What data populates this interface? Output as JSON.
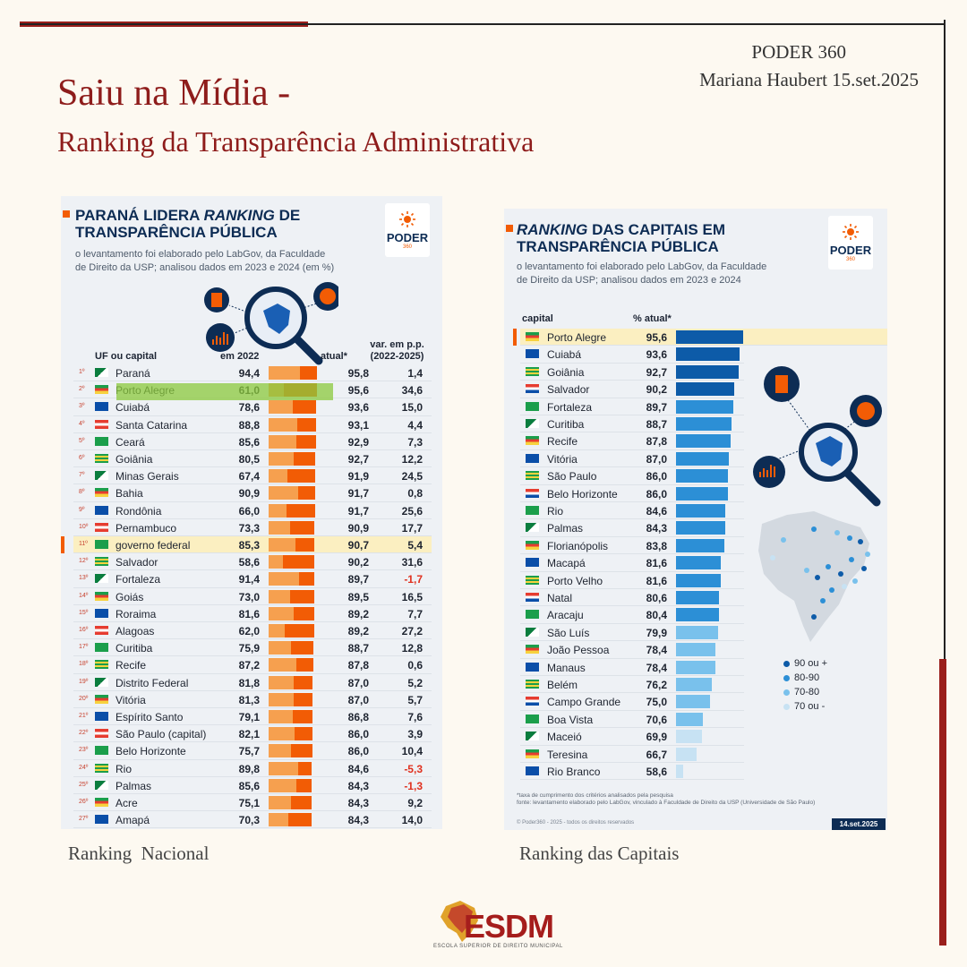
{
  "header": {
    "title": "Saiu na Mídia -",
    "subtitle": "Ranking da Transparência Administrativa",
    "source": "PODER 360",
    "author_date": "Mariana Haubert  15.set.2025"
  },
  "left_panel": {
    "title_line1": "PARANÁ LIDERA ",
    "title_italic": "RANKING",
    "title_line1_end": " DE",
    "title_line2": "TRANSPARÊNCIA PÚBLICA",
    "desc_line1": "o levantamento foi elaborado pelo LabGov, da Faculdade",
    "desc_line2": "de Direito da USP; analisou dados em 2023 e 2024 (em %)",
    "logo_word": "PODER",
    "logo_num": "360",
    "col_name": "UF ou capital",
    "col_2022": "em 2022",
    "col_now": "atual*",
    "col_var1": "var. em p.p.",
    "col_var2": "(2022-2025)",
    "caption": "Ranking  Nacional"
  },
  "right_panel": {
    "title_italic": "RANKING",
    "title_line1_end": " DAS CAPITAIS EM",
    "title_line2": "TRANSPARÊNCIA PÚBLICA",
    "desc_line1": "o levantamento foi elaborado pelo LabGov, da Faculdade",
    "desc_line2": "de Direito da USP; analisou dados em 2023 e 2024",
    "logo_word": "PODER",
    "logo_num": "360",
    "col_name": "capital",
    "col_val": "% atual*",
    "legend": [
      "90 ou +",
      "80-90",
      "70-80",
      "70 ou -"
    ],
    "footnote1": "*taxa de cumprimento dos critérios analisados pela pesquisa",
    "footnote2": "fonte: levantamento elaborado pelo LabGov, vinculado à Faculdade de Direito da USP (Universidade de São Paulo)",
    "copyright": "© Poder360 - 2025 - todos os direitos reservados",
    "date": "14.set.2025",
    "caption": "Ranking das Capitais"
  },
  "brand": {
    "name": "ESDM",
    "full": "ESCOLA SUPERIOR DE DIREITO MUNICIPAL"
  },
  "colors": {
    "accent_red": "#8e1c1b",
    "navy": "#0d2c54",
    "orange": "#f25c05",
    "orange_light": "#f6a04f",
    "tier_90": "#0d5ba8",
    "tier_80": "#2c8fd6",
    "tier_70": "#79c1ec",
    "tier_low": "#c7e2f3"
  },
  "chart_data": [
    {
      "type": "bar",
      "title": "PARANÁ LIDERA RANKING DE TRANSPARÊNCIA PÚBLICA",
      "xlabel": "",
      "ylabel": "",
      "ylim": [
        0,
        100
      ],
      "categories": [
        "Paraná",
        "Porto Alegre",
        "Cuiabá",
        "Santa Catarina",
        "Ceará",
        "Goiânia",
        "Minas Gerais",
        "Bahia",
        "Rondônia",
        "Pernambuco",
        "governo federal",
        "Salvador",
        "Fortaleza",
        "Goiás",
        "Roraima",
        "Alagoas",
        "Curitiba",
        "Recife",
        "Distrito Federal",
        "Vitória",
        "Espírito Santo",
        "São Paulo (capital)",
        "Belo Horizonte",
        "Rio",
        "Palmas",
        "Acre",
        "Amapá"
      ],
      "ranks": [
        "1º",
        "2º",
        "3º",
        "4º",
        "5º",
        "6º",
        "7º",
        "8º",
        "9º",
        "10º",
        "11º",
        "12º",
        "13º",
        "14º",
        "15º",
        "16º",
        "17º",
        "18º",
        "19º",
        "20º",
        "21º",
        "22º",
        "23º",
        "24º",
        "25º",
        "26º",
        "27º"
      ],
      "series": [
        {
          "name": "em 2022",
          "values": [
            94.4,
            61.0,
            78.6,
            88.8,
            85.6,
            80.5,
            67.4,
            90.9,
            66.0,
            73.3,
            85.3,
            58.6,
            91.4,
            73.0,
            81.6,
            62.0,
            75.9,
            87.2,
            81.8,
            81.3,
            79.1,
            82.1,
            75.7,
            89.8,
            85.6,
            75.1,
            70.3
          ]
        },
        {
          "name": "atual*",
          "values": [
            95.8,
            95.6,
            93.6,
            93.1,
            92.9,
            92.7,
            91.9,
            91.7,
            91.7,
            90.9,
            90.7,
            90.2,
            89.7,
            89.5,
            89.2,
            89.2,
            88.7,
            87.8,
            87.0,
            87.0,
            86.8,
            86.0,
            86.0,
            84.6,
            84.3,
            84.3,
            84.3
          ]
        }
      ],
      "labels_2022": [
        "94,4",
        "61,0",
        "78,6",
        "88,8",
        "85,6",
        "80,5",
        "67,4",
        "90,9",
        "66,0",
        "73,3",
        "85,3",
        "58,6",
        "91,4",
        "73,0",
        "81,6",
        "62,0",
        "75,9",
        "87,2",
        "81,8",
        "81,3",
        "79,1",
        "82,1",
        "75,7",
        "89,8",
        "85,6",
        "75,1",
        "70,3"
      ],
      "labels_now": [
        "95,8",
        "95,6",
        "93,6",
        "93,1",
        "92,9",
        "92,7",
        "91,9",
        "91,7",
        "91,7",
        "90,9",
        "90,7",
        "90,2",
        "89,7",
        "89,5",
        "89,2",
        "89,2",
        "88,7",
        "87,8",
        "87,0",
        "87,0",
        "86,8",
        "86,0",
        "86,0",
        "84,6",
        "84,3",
        "84,3",
        "84,3"
      ],
      "variation": [
        "1,4",
        "34,6",
        "15,0",
        "4,4",
        "7,3",
        "12,2",
        "24,5",
        "0,8",
        "25,6",
        "17,7",
        "5,4",
        "31,6",
        "-1,7",
        "16,5",
        "7,7",
        "27,2",
        "12,8",
        "0,6",
        "5,2",
        "5,7",
        "7,6",
        "3,9",
        "10,4",
        "-5,3",
        "-1,3",
        "9,2",
        "14,0"
      ],
      "highlighted": "governo federal"
    },
    {
      "type": "bar",
      "title": "RANKING DAS CAPITAIS EM TRANSPARÊNCIA PÚBLICA",
      "xlabel": "",
      "ylabel": "",
      "ylim": [
        0,
        100
      ],
      "categories": [
        "Porto Alegre",
        "Cuiabá",
        "Goiânia",
        "Salvador",
        "Fortaleza",
        "Curitiba",
        "Recife",
        "Vitória",
        "São Paulo",
        "Belo Horizonte",
        "Rio",
        "Palmas",
        "Florianópolis",
        "Macapá",
        "Porto Velho",
        "Natal",
        "Aracaju",
        "São Luís",
        "João Pessoa",
        "Manaus",
        "Belém",
        "Campo Grande",
        "Boa Vista",
        "Maceió",
        "Teresina",
        "Rio Branco"
      ],
      "values": [
        95.6,
        93.6,
        92.7,
        90.2,
        89.7,
        88.7,
        87.8,
        87.0,
        86.0,
        86.0,
        84.6,
        84.3,
        83.8,
        81.6,
        81.6,
        80.6,
        80.4,
        79.9,
        78.4,
        78.4,
        76.2,
        75.0,
        70.6,
        69.9,
        66.7,
        58.6
      ],
      "labels": [
        "95,6",
        "93,6",
        "92,7",
        "90,2",
        "89,7",
        "88,7",
        "87,8",
        "87,0",
        "86,0",
        "86,0",
        "84,6",
        "84,3",
        "83,8",
        "81,6",
        "81,6",
        "80,6",
        "80,4",
        "79,9",
        "78,4",
        "78,4",
        "76,2",
        "75,0",
        "70,6",
        "69,9",
        "66,7",
        "58,6"
      ],
      "highlighted": "Porto Alegre"
    }
  ]
}
